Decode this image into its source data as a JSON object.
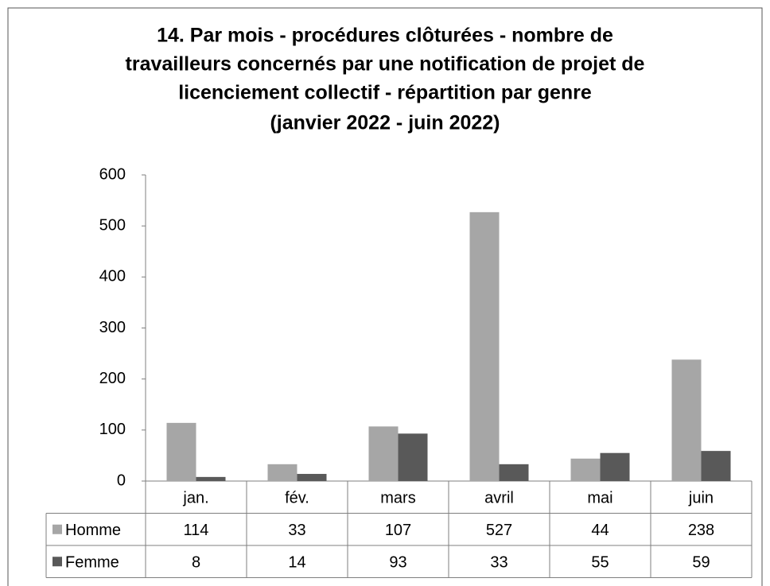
{
  "chart_data": {
    "type": "bar",
    "title": [
      "14. Par mois - procédures clôturées - nombre de",
      "travailleurs concernés par une notification de projet de",
      "licenciement collectif - répartition par genre",
      "(janvier 2022 - juin 2022)"
    ],
    "categories": [
      "jan.",
      "fév.",
      "mars",
      "avril",
      "mai",
      "juin"
    ],
    "series": [
      {
        "name": "Homme",
        "color": "#a6a6a6",
        "values": [
          114,
          33,
          107,
          527,
          44,
          238
        ]
      },
      {
        "name": "Femme",
        "color": "#595959",
        "values": [
          8,
          14,
          93,
          33,
          55,
          59
        ]
      }
    ],
    "ylim": [
      0,
      600
    ],
    "yticks": [
      0,
      100,
      200,
      300,
      400,
      500,
      600
    ],
    "grid": false,
    "legend": "table"
  }
}
